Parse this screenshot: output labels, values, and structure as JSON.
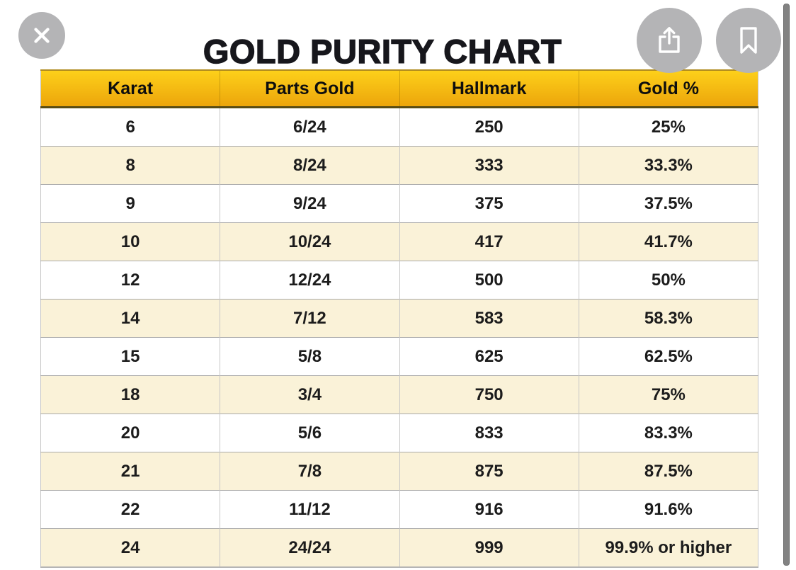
{
  "title": "GOLD PURITY CHART",
  "viewer": {
    "close_button": {
      "icon": "close-x"
    },
    "share_button": {
      "icon": "share-arrow-up"
    },
    "bookmark_button": {
      "icon": "bookmark-outline"
    },
    "scrollbar": {
      "orientation": "vertical"
    }
  },
  "colors": {
    "page_bg": "#ffffff",
    "title_color": "#17171c",
    "button_gray": "#b4b4b6",
    "scrollbar_color": "#828282",
    "header_top": "#fdd01a",
    "header_bottom": "#eca50b",
    "stripe_cream": "#faf2d8"
  },
  "table": {
    "headers": [
      "Karat",
      "Parts Gold",
      "Hallmark",
      "Gold %"
    ],
    "rows": [
      [
        "6",
        "6/24",
        "250",
        "25%"
      ],
      [
        "8",
        "8/24",
        "333",
        "33.3%"
      ],
      [
        "9",
        "9/24",
        "375",
        "37.5%"
      ],
      [
        "10",
        "10/24",
        "417",
        "41.7%"
      ],
      [
        "12",
        "12/24",
        "500",
        "50%"
      ],
      [
        "14",
        "7/12",
        "583",
        "58.3%"
      ],
      [
        "15",
        "5/8",
        "625",
        "62.5%"
      ],
      [
        "18",
        "3/4",
        "750",
        "75%"
      ],
      [
        "20",
        "5/6",
        "833",
        "83.3%"
      ],
      [
        "21",
        "7/8",
        "875",
        "87.5%"
      ],
      [
        "22",
        "11/12",
        "916",
        "91.6%"
      ],
      [
        "24",
        "24/24",
        "999",
        "99.9% or higher"
      ]
    ]
  },
  "chart_data": {
    "type": "table",
    "title": "GOLD PURITY CHART",
    "columns": [
      "Karat",
      "Parts Gold",
      "Hallmark",
      "Gold %"
    ],
    "rows": [
      [
        "6",
        "6/24",
        "250",
        "25%"
      ],
      [
        "8",
        "8/24",
        "333",
        "33.3%"
      ],
      [
        "9",
        "9/24",
        "375",
        "37.5%"
      ],
      [
        "10",
        "10/24",
        "417",
        "41.7%"
      ],
      [
        "12",
        "12/24",
        "500",
        "50%"
      ],
      [
        "14",
        "7/12",
        "583",
        "58.3%"
      ],
      [
        "15",
        "5/8",
        "625",
        "62.5%"
      ],
      [
        "18",
        "3/4",
        "750",
        "75%"
      ],
      [
        "20",
        "5/6",
        "833",
        "83.3%"
      ],
      [
        "21",
        "7/8",
        "875",
        "87.5%"
      ],
      [
        "22",
        "11/12",
        "916",
        "91.6%"
      ],
      [
        "24",
        "24/24",
        "999",
        "99.9% or higher"
      ]
    ]
  }
}
